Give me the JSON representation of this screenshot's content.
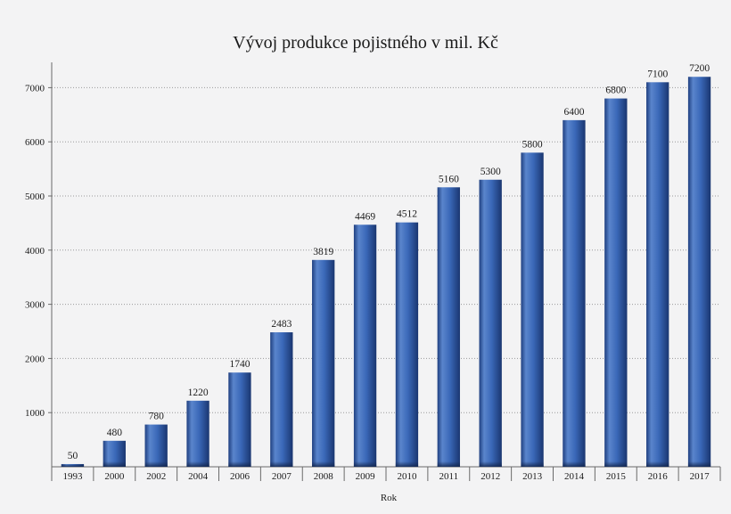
{
  "chart_data": {
    "type": "bar",
    "title": "Vývoj produkce pojistného v mil. Kč",
    "xlabel": "Rok",
    "ylabel": "",
    "categories": [
      "1993",
      "2000",
      "2002",
      "2004",
      "2006",
      "2007",
      "2008",
      "2009",
      "2010",
      "2011",
      "2012",
      "2013",
      "2014",
      "2015",
      "2016",
      "2017"
    ],
    "values": [
      50,
      480,
      780,
      1220,
      1740,
      2483,
      3819,
      4469,
      4512,
      5160,
      5300,
      5800,
      6400,
      6800,
      7100,
      7200
    ],
    "data_labels": [
      "50",
      "480",
      "780",
      "1220",
      "1740",
      "2483",
      "3819",
      "4469",
      "4512",
      "5160",
      "5300",
      "5800",
      "6400",
      "6800",
      "7100",
      "7200"
    ],
    "y_ticks": [
      1000,
      2000,
      3000,
      4000,
      5000,
      6000,
      7000
    ],
    "ylim": [
      0,
      7500
    ],
    "grid": true,
    "legend": "none",
    "colors": {
      "bar_light": "#5a85cc",
      "bar_mid": "#3a68b8",
      "bar_dark": "#1f3f80",
      "bar_base": "#14274f",
      "background": "#f3f3f4"
    }
  }
}
